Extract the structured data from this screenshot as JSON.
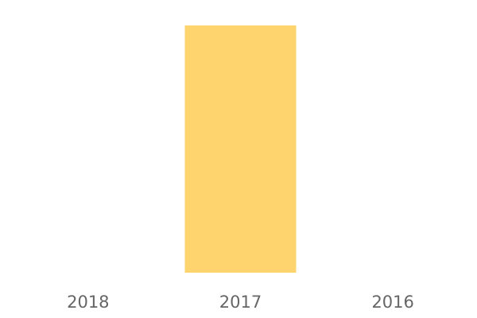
{
  "chart_data": {
    "type": "bar",
    "categories": [
      "2018",
      "2017",
      "2016"
    ],
    "values": [
      0,
      1,
      0
    ],
    "ylim": [
      0,
      1
    ],
    "grid": false,
    "colors": {
      "bar": "#FED46E",
      "tick_label": "#666666"
    }
  }
}
